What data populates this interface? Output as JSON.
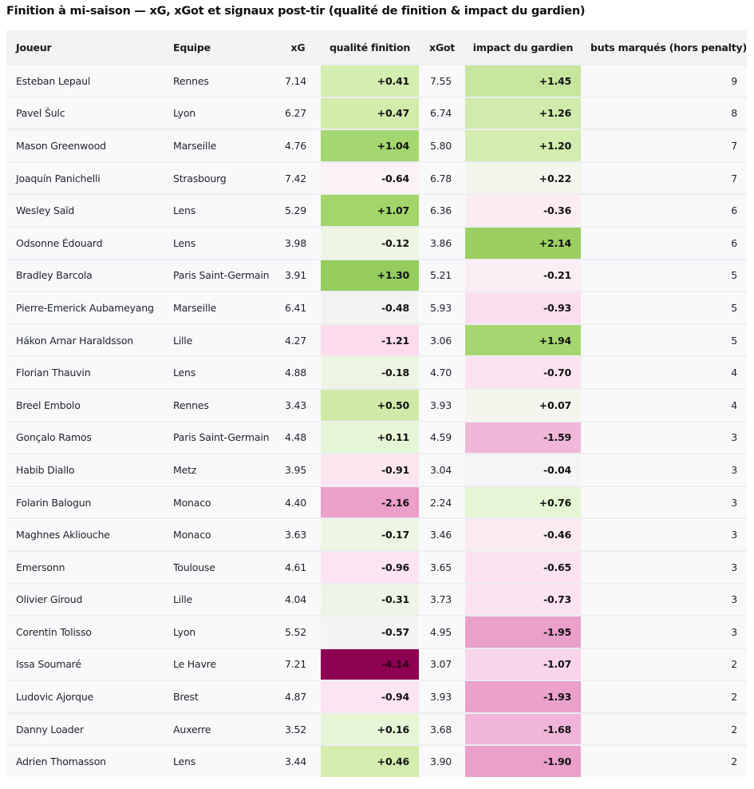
{
  "title": "Finition à mi-saison — xG, xGot et signaux post-tir (qualité de finition & impact du gardien)",
  "columns": [
    "Joueur",
    "Equipe",
    "xG",
    "qualité finition",
    "xGot",
    "impact du gardien",
    "buts marqués (hors penalty)"
  ],
  "rows": [
    {
      "joueur": "Esteban Lepaul",
      "equipe": "Rennes",
      "xg": "7.14",
      "qualite": "+0.41",
      "xgot": "7.55",
      "impact": "+1.45",
      "buts": "9"
    },
    {
      "joueur": "Pavel Šulc",
      "equipe": "Lyon",
      "xg": "6.27",
      "qualite": "+0.47",
      "xgot": "6.74",
      "impact": "+1.26",
      "buts": "8"
    },
    {
      "joueur": "Mason Greenwood",
      "equipe": "Marseille",
      "xg": "4.76",
      "qualite": "+1.04",
      "xgot": "5.80",
      "impact": "+1.20",
      "buts": "7"
    },
    {
      "joueur": "Joaquín Panichelli",
      "equipe": "Strasbourg",
      "xg": "7.42",
      "qualite": "-0.64",
      "xgot": "6.78",
      "impact": "+0.22",
      "buts": "7"
    },
    {
      "joueur": "Wesley Saïd",
      "equipe": "Lens",
      "xg": "5.29",
      "qualite": "+1.07",
      "xgot": "6.36",
      "impact": "-0.36",
      "buts": "6"
    },
    {
      "joueur": "Odsonne Édouard",
      "equipe": "Lens",
      "xg": "3.98",
      "qualite": "-0.12",
      "xgot": "3.86",
      "impact": "+2.14",
      "buts": "6"
    },
    {
      "joueur": "Bradley Barcola",
      "equipe": "Paris Saint-Germain",
      "xg": "3.91",
      "qualite": "+1.30",
      "xgot": "5.21",
      "impact": "-0.21",
      "buts": "5"
    },
    {
      "joueur": "Pierre-Emerick Aubameyang",
      "equipe": "Marseille",
      "xg": "6.41",
      "qualite": "-0.48",
      "xgot": "5.93",
      "impact": "-0.93",
      "buts": "5"
    },
    {
      "joueur": "Hákon Arnar Haraldsson",
      "equipe": "Lille",
      "xg": "4.27",
      "qualite": "-1.21",
      "xgot": "3.06",
      "impact": "+1.94",
      "buts": "5"
    },
    {
      "joueur": "Florian Thauvin",
      "equipe": "Lens",
      "xg": "4.88",
      "qualite": "-0.18",
      "xgot": "4.70",
      "impact": "-0.70",
      "buts": "4"
    },
    {
      "joueur": "Breel Embolo",
      "equipe": "Rennes",
      "xg": "3.43",
      "qualite": "+0.50",
      "xgot": "3.93",
      "impact": "+0.07",
      "buts": "4"
    },
    {
      "joueur": "Gonçalo Ramos",
      "equipe": "Paris Saint-Germain",
      "xg": "4.48",
      "qualite": "+0.11",
      "xgot": "4.59",
      "impact": "-1.59",
      "buts": "3"
    },
    {
      "joueur": "Habib Diallo",
      "equipe": "Metz",
      "xg": "3.95",
      "qualite": "-0.91",
      "xgot": "3.04",
      "impact": "-0.04",
      "buts": "3"
    },
    {
      "joueur": "Folarin Balogun",
      "equipe": "Monaco",
      "xg": "4.40",
      "qualite": "-2.16",
      "xgot": "2.24",
      "impact": "+0.76",
      "buts": "3"
    },
    {
      "joueur": "Maghnes Akliouche",
      "equipe": "Monaco",
      "xg": "3.63",
      "qualite": "-0.17",
      "xgot": "3.46",
      "impact": "-0.46",
      "buts": "3"
    },
    {
      "joueur": "Emersonn",
      "equipe": "Toulouse",
      "xg": "4.61",
      "qualite": "-0.96",
      "xgot": "3.65",
      "impact": "-0.65",
      "buts": "3"
    },
    {
      "joueur": "Olivier Giroud",
      "equipe": "Lille",
      "xg": "4.04",
      "qualite": "-0.31",
      "xgot": "3.73",
      "impact": "-0.73",
      "buts": "3"
    },
    {
      "joueur": "Corentin Tolisso",
      "equipe": "Lyon",
      "xg": "5.52",
      "qualite": "-0.57",
      "xgot": "4.95",
      "impact": "-1.95",
      "buts": "3"
    },
    {
      "joueur": "Issa Soumaré",
      "equipe": "Le Havre",
      "xg": "7.21",
      "qualite": "-4.14",
      "xgot": "3.07",
      "impact": "-1.07",
      "buts": "2"
    },
    {
      "joueur": "Ludovic Ajorque",
      "equipe": "Brest",
      "xg": "4.87",
      "qualite": "-0.94",
      "xgot": "3.93",
      "impact": "-1.93",
      "buts": "2"
    },
    {
      "joueur": "Danny Loader",
      "equipe": "Auxerre",
      "xg": "3.52",
      "qualite": "+0.16",
      "xgot": "3.68",
      "impact": "-1.68",
      "buts": "2"
    },
    {
      "joueur": "Adrien Thomasson",
      "equipe": "Lens",
      "xg": "3.44",
      "qualite": "+0.46",
      "xgot": "3.90",
      "impact": "-1.90",
      "buts": "2"
    }
  ],
  "colors": {
    "qualite": [
      "#d4edb0",
      "#d2ecac",
      "#a6d670",
      "#faf2f6",
      "#a4d56c",
      "#eef5e4",
      "#94cc5e",
      "#f3f3f2",
      "#fcdcec",
      "#eef5e2",
      "#cfeaa8",
      "#e6f5d6",
      "#fbe6f0",
      "#ec9fcb",
      "#eef5e3",
      "#fce4f0",
      "#eff5e6",
      "#f4f4f4",
      "#8e0152",
      "#fbe5f0",
      "#e5f5d5",
      "#d4ecae"
    ],
    "impact": [
      "#c6e69e",
      "#d0ebac",
      "#d3ecaf",
      "#f3f6ec",
      "#fbecf3",
      "#9ccf62",
      "#fbeef4",
      "#fbdeed",
      "#a6d670",
      "#fbe4f0",
      "#f4f6ee",
      "#f1b7d9",
      "#f5f5f5",
      "#e6f5d4",
      "#fbeaf2",
      "#fbe3ef",
      "#fbe3ef",
      "#eaa0cb",
      "#f9d4ea",
      "#eaa1cc",
      "#f0b5d8",
      "#eaa0cb"
    ]
  }
}
